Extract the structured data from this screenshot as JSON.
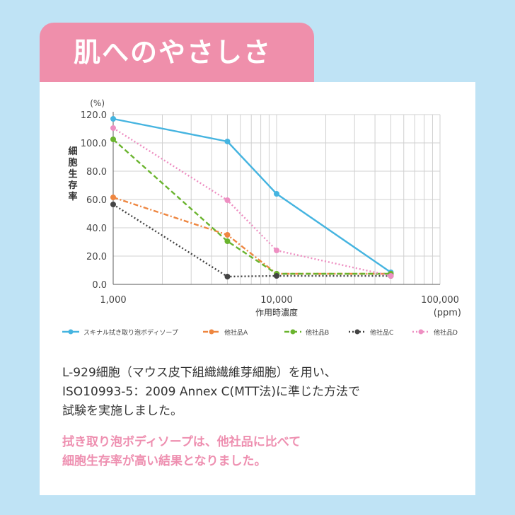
{
  "header": {
    "title": "肌へのやさしさ"
  },
  "chart_data": {
    "type": "line",
    "x_scale": "log",
    "xlim": [
      1000,
      100000
    ],
    "ylim": [
      0,
      120
    ],
    "grid": true,
    "x_ticks": [
      {
        "value": 1000,
        "label": "1,000"
      },
      {
        "value": 10000,
        "label": "10,000"
      },
      {
        "value": 100000,
        "label": "100,000"
      }
    ],
    "y_ticks": [
      {
        "value": 0,
        "label": "0.0"
      },
      {
        "value": 20,
        "label": "20.0"
      },
      {
        "value": 40,
        "label": "40.0"
      },
      {
        "value": 60,
        "label": "60.0"
      },
      {
        "value": 80,
        "label": "80.0"
      },
      {
        "value": 100,
        "label": "100.0"
      },
      {
        "value": 120,
        "label": "120.0"
      }
    ],
    "ylabel": "細胞生存率",
    "yunit": "(%)",
    "xlabel": "作用時濃度",
    "xunit": "(ppm)",
    "legend_position": "bottom",
    "series": [
      {
        "name": "スキナル拭き取り泡ボディソープ",
        "color": "#45b4e0",
        "dash": "solid",
        "points": [
          [
            1000,
            117
          ],
          [
            5000,
            101
          ],
          [
            10000,
            64
          ],
          [
            50000,
            8.5
          ]
        ]
      },
      {
        "name": "他社品A",
        "color": "#ee8640",
        "dash": "dashdot",
        "points": [
          [
            1000,
            61.5
          ],
          [
            5000,
            35
          ],
          [
            10000,
            7.5
          ],
          [
            50000,
            7.5
          ]
        ]
      },
      {
        "name": "他社品B",
        "color": "#6ab42e",
        "dash": "dashed",
        "points": [
          [
            1000,
            102.5
          ],
          [
            5000,
            30.5
          ],
          [
            10000,
            7.5
          ],
          [
            50000,
            7.5
          ]
        ]
      },
      {
        "name": "他社品C",
        "color": "#444444",
        "dash": "dotted",
        "points": [
          [
            1000,
            56.5
          ],
          [
            5000,
            5.5
          ],
          [
            10000,
            6
          ],
          [
            50000,
            6
          ]
        ]
      },
      {
        "name": "他社品D",
        "color": "#ee8fc2",
        "dash": "dotted",
        "points": [
          [
            1000,
            110.5
          ],
          [
            5000,
            59.5
          ],
          [
            10000,
            24
          ],
          [
            50000,
            6
          ]
        ]
      }
    ]
  },
  "description": {
    "lines": [
      "L-929細胞（マウス皮下組織繊維芽細胞）を用い、",
      "ISO10993-5：2009 Annex C(MTT法)に準じた方法で",
      "試験を実施しました。"
    ]
  },
  "conclusion": {
    "lines": [
      "拭き取り泡ボディソープは、他社品に比べて",
      "細胞生存率が高い結果となりました。"
    ]
  }
}
